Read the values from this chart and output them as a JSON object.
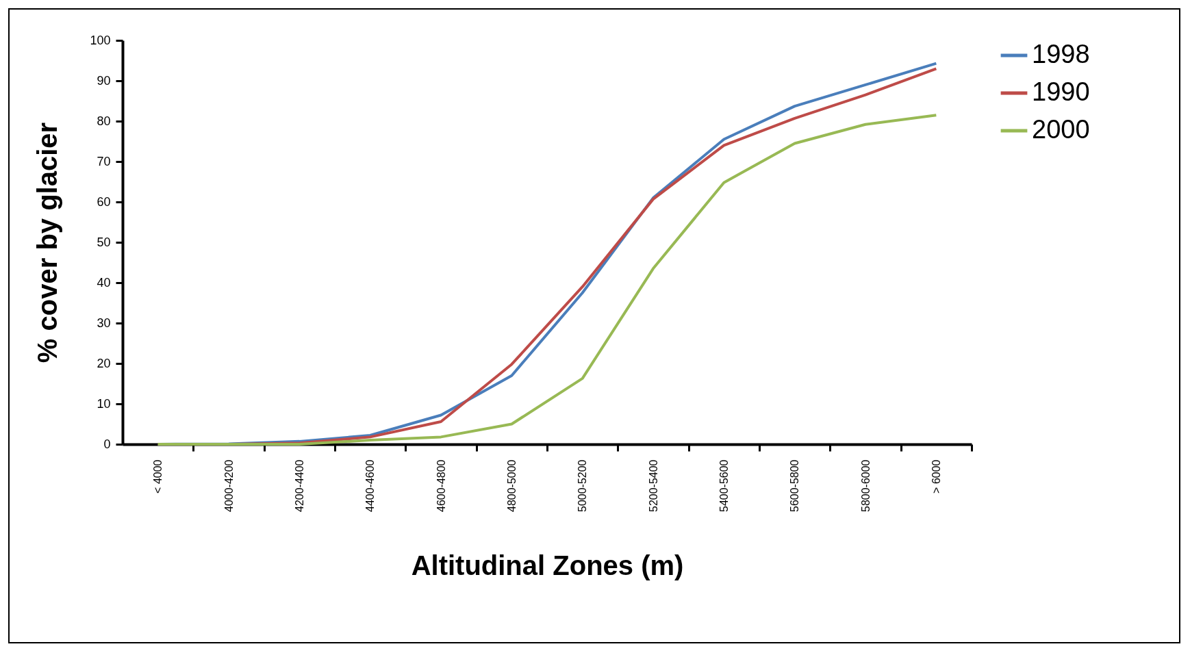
{
  "chart_data": {
    "type": "line",
    "xlabel": "Altitudinal Zones (m)",
    "ylabel": "% cover by glacier",
    "categories": [
      "< 4000",
      "4000-4200",
      "4200-4400",
      "4400-4600",
      "4600-4800",
      "4800-5000",
      "5000-5200",
      "5200-5400",
      "5400-5600",
      "5600-5800",
      "5800-6000",
      "> 6000"
    ],
    "series": [
      {
        "name": "1998",
        "color": "#4a7ebb",
        "values": [
          0,
          0.1,
          0.7,
          2.2,
          7.2,
          17,
          37.5,
          61,
          75.5,
          83.7,
          89,
          94.3
        ]
      },
      {
        "name": "1990",
        "color": "#be4b48",
        "values": [
          0,
          0,
          0.3,
          1.8,
          5.6,
          19.8,
          39,
          60.7,
          74,
          80.7,
          86.5,
          93
        ]
      },
      {
        "name": "2000",
        "color": "#98b954",
        "values": [
          0,
          0,
          0,
          1,
          1.8,
          5,
          16.3,
          43.5,
          64.8,
          74.5,
          79.2,
          81.5
        ]
      }
    ],
    "ylim": [
      0,
      100
    ],
    "yticks": [
      0,
      10,
      20,
      30,
      40,
      50,
      60,
      70,
      80,
      90,
      100
    ],
    "grid": false,
    "legend": "right"
  }
}
